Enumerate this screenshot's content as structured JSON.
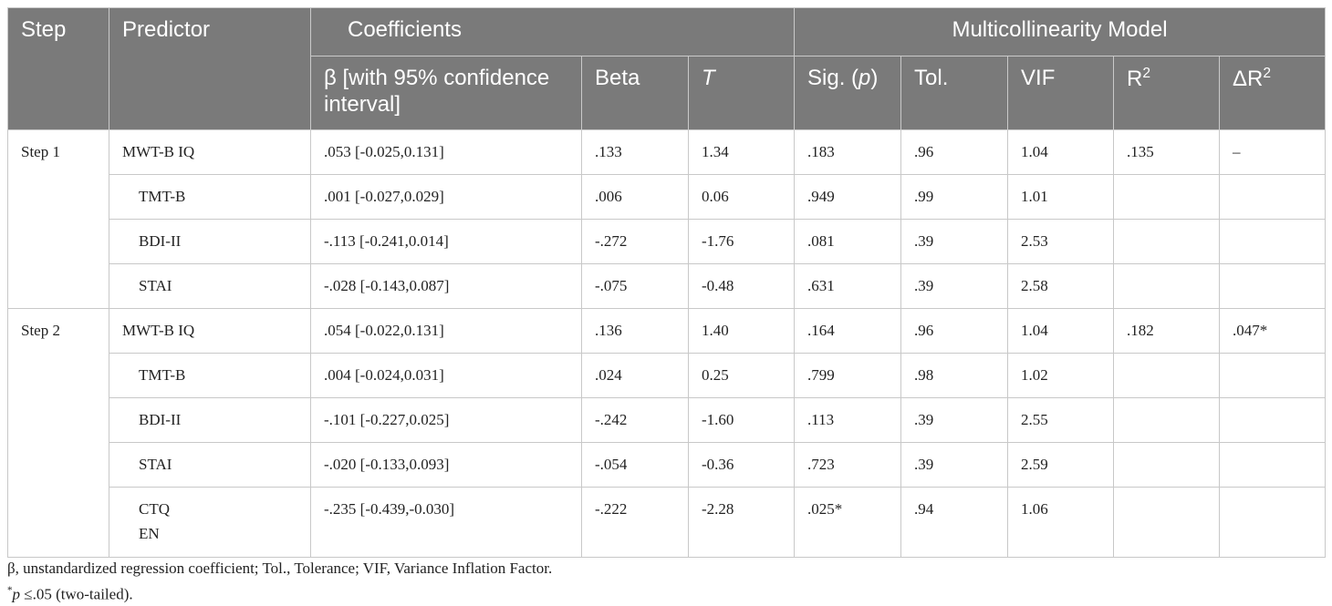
{
  "header": {
    "step": "Step",
    "predictor": "Predictor",
    "coefficients": "Coefficients",
    "multicollinearity": "Multicollinearity Model",
    "beta_ci": "β [with 95% confidence interval]",
    "beta": "Beta",
    "t": "T",
    "sig_prefix": "Sig. (",
    "sig_p": "p",
    "sig_suffix": ")",
    "tol": "Tol.",
    "vif": "VIF",
    "r2": "R",
    "delta_r2": "ΔR",
    "sup2": "2"
  },
  "rows": [
    {
      "step": "Step 1",
      "predictor": "MWT-B IQ",
      "b": ".053 [-0.025,0.131]",
      "beta": ".133",
      "t": "1.34",
      "p": ".183",
      "tol": ".96",
      "vif": "1.04",
      "r2": ".135",
      "dr2": "–"
    },
    {
      "step": "",
      "predictor": "TMT-B",
      "b": ".001 [-0.027,0.029]",
      "beta": ".006",
      "t": "0.06",
      "p": ".949",
      "tol": ".99",
      "vif": "1.01",
      "r2": "",
      "dr2": ""
    },
    {
      "step": "",
      "predictor": "BDI-II",
      "b": "-.113 [-0.241,0.014]",
      "beta": "-.272",
      "t": "-1.76",
      "p": ".081",
      "tol": ".39",
      "vif": "2.53",
      "r2": "",
      "dr2": ""
    },
    {
      "step": "",
      "predictor": "STAI",
      "b": "-.028 [-0.143,0.087]",
      "beta": "-.075",
      "t": "-0.48",
      "p": ".631",
      "tol": ".39",
      "vif": "2.58",
      "r2": "",
      "dr2": ""
    },
    {
      "step": "Step 2",
      "predictor": "MWT-B IQ",
      "b": ".054 [-0.022,0.131]",
      "beta": ".136",
      "t": "1.40",
      "p": ".164",
      "tol": ".96",
      "vif": "1.04",
      "r2": ".182",
      "dr2": ".047*"
    },
    {
      "step": "",
      "predictor": "TMT-B",
      "b": ".004 [-0.024,0.031]",
      "beta": ".024",
      "t": "0.25",
      "p": ".799",
      "tol": ".98",
      "vif": "1.02",
      "r2": "",
      "dr2": ""
    },
    {
      "step": "",
      "predictor": "BDI-II",
      "b": "-.101 [-0.227,0.025]",
      "beta": "-.242",
      "t": "-1.60",
      "p": ".113",
      "tol": ".39",
      "vif": "2.55",
      "r2": "",
      "dr2": ""
    },
    {
      "step": "",
      "predictor": "STAI",
      "b": "-.020 [-0.133,0.093]",
      "beta": "-.054",
      "t": "-0.36",
      "p": ".723",
      "tol": ".39",
      "vif": "2.59",
      "r2": "",
      "dr2": ""
    },
    {
      "step": "",
      "predictor": "CTQ",
      "predictor2": "EN",
      "b": "-.235 [-0.439,-0.030]",
      "beta": "-.222",
      "t": "-2.28",
      "p": ".025*",
      "tol": ".94",
      "vif": "1.06",
      "r2": "",
      "dr2": ""
    }
  ],
  "notes": {
    "line1": "β, unstandardized regression coefficient; Tol., Tolerance; VIF, Variance Inflation Factor.",
    "line2_star": "*",
    "line2_p": "p",
    "line2_rest": " ≤.05 (two-tailed)."
  }
}
